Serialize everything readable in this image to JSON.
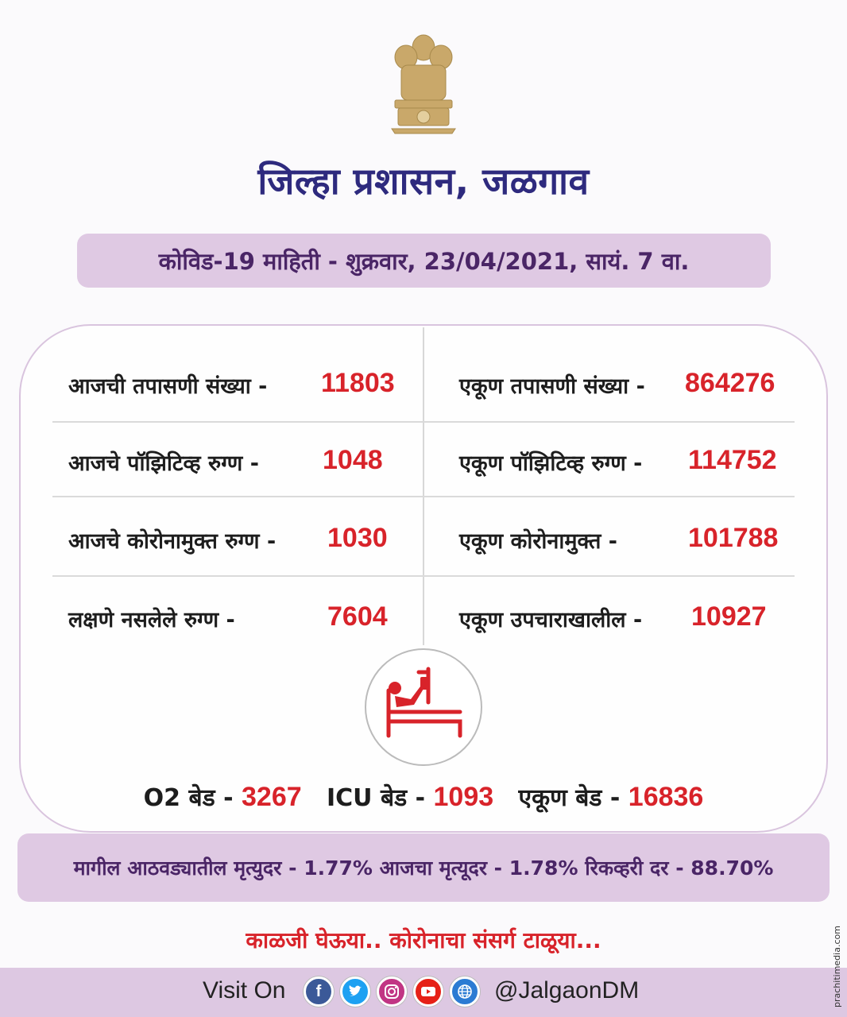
{
  "header": {
    "title": "जिल्हा प्रशासन, जळगाव",
    "date_line": "कोविड-19 माहिती - शुक्रवार, 23/04/2021, सायं. 7 वा."
  },
  "stats": {
    "today_tests": {
      "label": "आजची तपासणी संख्या  -",
      "value": "11803"
    },
    "total_tests": {
      "label": "एकूण तपासणी संख्या -",
      "value": "864276"
    },
    "today_positive": {
      "label": "आजचे पॉझिटिव्ह रुग्ण -",
      "value": "1048"
    },
    "total_positive": {
      "label": "एकूण पॉझिटिव्ह रुग्ण -",
      "value": "114752"
    },
    "today_recovered": {
      "label": "आजचे कोरोनामुक्त रुग्ण -",
      "value": "1030"
    },
    "total_recovered": {
      "label": "एकूण कोरोनामुक्त -",
      "value": "101788"
    },
    "asymptomatic": {
      "label": "लक्षणे नसलेले रुग्ण -",
      "value": "7604"
    },
    "under_treatment": {
      "label": "एकूण उपचाराखालील -",
      "value": "10927"
    }
  },
  "beds": {
    "o2_label": "O2 बेड -",
    "o2_value": "3267",
    "icu_label": "ICU बेड -",
    "icu_value": "1093",
    "total_label": "एकूण  बेड -",
    "total_value": "16836"
  },
  "rates": {
    "text": "मागील आठवड्यातील मृत्युदर -  1.77% आजचा मृत्यूदर  - 1.78% रिकव्हरी दर - 88.70%"
  },
  "slogan": "काळजी घेऊया.. कोरोनाचा संसर्ग टाळूया...",
  "footer": {
    "visit": "Visit On",
    "handle": "@JalgaonDM",
    "icons": [
      "facebook-icon",
      "twitter-icon",
      "instagram-icon",
      "youtube-icon",
      "web-icon"
    ],
    "watermark": "prachitimedia.com"
  },
  "colors": {
    "title": "#2e2a7e",
    "value_red": "#d8232a",
    "pill": "#dfc9e3",
    "facebook": "#3b5998",
    "twitter": "#1da1f2",
    "instagram": "#c13584",
    "youtube": "#e62117",
    "web": "#2b7bd3"
  }
}
